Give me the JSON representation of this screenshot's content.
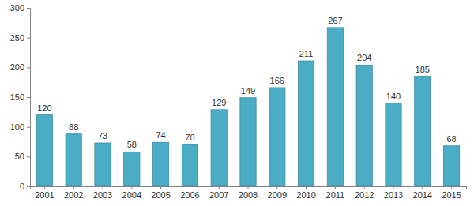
{
  "chart_data": {
    "type": "bar",
    "categories": [
      "2001",
      "2002",
      "2003",
      "2004",
      "2005",
      "2006",
      "2007",
      "2008",
      "2009",
      "2010",
      "2011",
      "2012",
      "2013",
      "2014",
      "2015"
    ],
    "values": [
      120,
      88,
      73,
      58,
      74,
      70,
      129,
      149,
      166,
      211,
      267,
      204,
      140,
      185,
      68
    ],
    "color": "#4bacc6",
    "ylim": [
      0,
      300
    ],
    "yticks": [
      0,
      50,
      100,
      150,
      200,
      250,
      300
    ],
    "grid": false,
    "data_labels": true
  }
}
